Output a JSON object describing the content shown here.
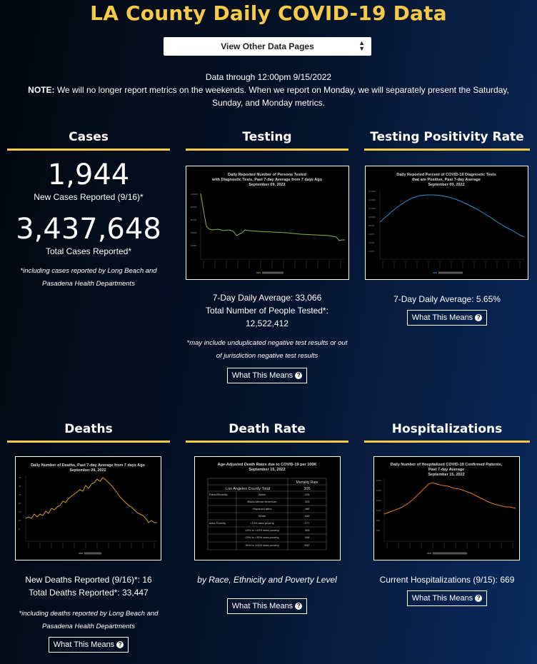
{
  "page_title": "LA County Daily COVID-19 Data",
  "select": {
    "label": "View Other Data Pages"
  },
  "note": {
    "data_through": "Data through 12:00pm 9/15/2022",
    "note_label": "NOTE:",
    "note_text": " We will no longer report metrics on the weekends. When we report on Monday, we will separately present the Saturday, Sunday, and Monday metrics."
  },
  "what_this_means": "What This Means",
  "cases": {
    "heading": "Cases",
    "new_cases": "1,944",
    "new_cases_label": "New Cases Reported (9/16)*",
    "total_cases": "3,437,648",
    "total_cases_label": "Total Cases Reported*",
    "footnote": "*including cases reported by Long Beach and Pasadena Health Departments"
  },
  "testing": {
    "heading": "Testing",
    "chart_title_1": "Daily Reported Number of Persons Tested",
    "chart_title_2": "with Diagnostic Tests, Past 7-day Average from 7 days Ago",
    "chart_title_3": "September 09, 2022",
    "avg": "7-Day Daily Average: 33,066",
    "total_label": "Total Number of People Tested*:",
    "total": "12,522,412",
    "footnote": "*may include unduplicated negative test results or out of jurisdiction negative test results"
  },
  "positivity": {
    "heading": "Testing Positivity Rate",
    "chart_title_1": "Daily Reported Percent of COVID-19 Diagnostic Tests",
    "chart_title_2": "that are Positive, Past 7-day Average",
    "chart_title_3": "September 09, 2022",
    "avg": "7-Day Daily Average: 5.65%"
  },
  "deaths": {
    "heading": "Deaths",
    "chart_title_1": "Daily Number of Deaths, Past 7-day Average from 7 days Ago",
    "chart_title_2": "September 09, 2022",
    "new": "New Deaths Reported (9/16)*: 16",
    "total": "Total Deaths Reported*: 33,447",
    "footnote": "*including deaths reported by Long Beach and Pasadena Health Departments"
  },
  "death_rate": {
    "heading": "Death Rate",
    "chart_title_1": "Age-Adjusted Death Rates due to COVID-19 per 100K",
    "chart_title_2": "September 15, 2022",
    "table_header": "Mortality Rate",
    "total_label": "Los Angeles County Total",
    "total_value": "305",
    "rows": [
      {
        "group": "Race/Ethnicity",
        "label": "Asian",
        "value": "205"
      },
      {
        "group": "",
        "label": "Black/African American",
        "value": "325"
      },
      {
        "group": "",
        "label": "Hispanic/Latino",
        "value": "466"
      },
      {
        "group": "",
        "label": "White",
        "value": "189"
      },
      {
        "group": "Area Poverty",
        "label": "<10% area poverty",
        "value": "177"
      },
      {
        "group": "",
        "label": "10% to <20% area poverty",
        "value": "305"
      },
      {
        "group": "",
        "label": "20% to <30% area poverty",
        "value": "406"
      },
      {
        "group": "",
        "label": "30% to 100% area poverty",
        "value": "542"
      }
    ],
    "caption": "by Race, Ethnicity and Poverty Level"
  },
  "hosp": {
    "heading": "Hospitalizations",
    "chart_title_1": "Daily Number of Hospitalized COVID-19 Confirmed Patients,",
    "chart_title_2": "Past 7-day Average",
    "chart_title_3": "September 15, 2022",
    "current": "Current Hospitalizations (9/15): 669"
  },
  "colors": {
    "accent": "#f7c948",
    "testing_line": "#8bb33a",
    "positivity_line": "#2a8fd6",
    "deaths_line": "#d4a017",
    "hosp_line": "#e07b1a"
  }
}
